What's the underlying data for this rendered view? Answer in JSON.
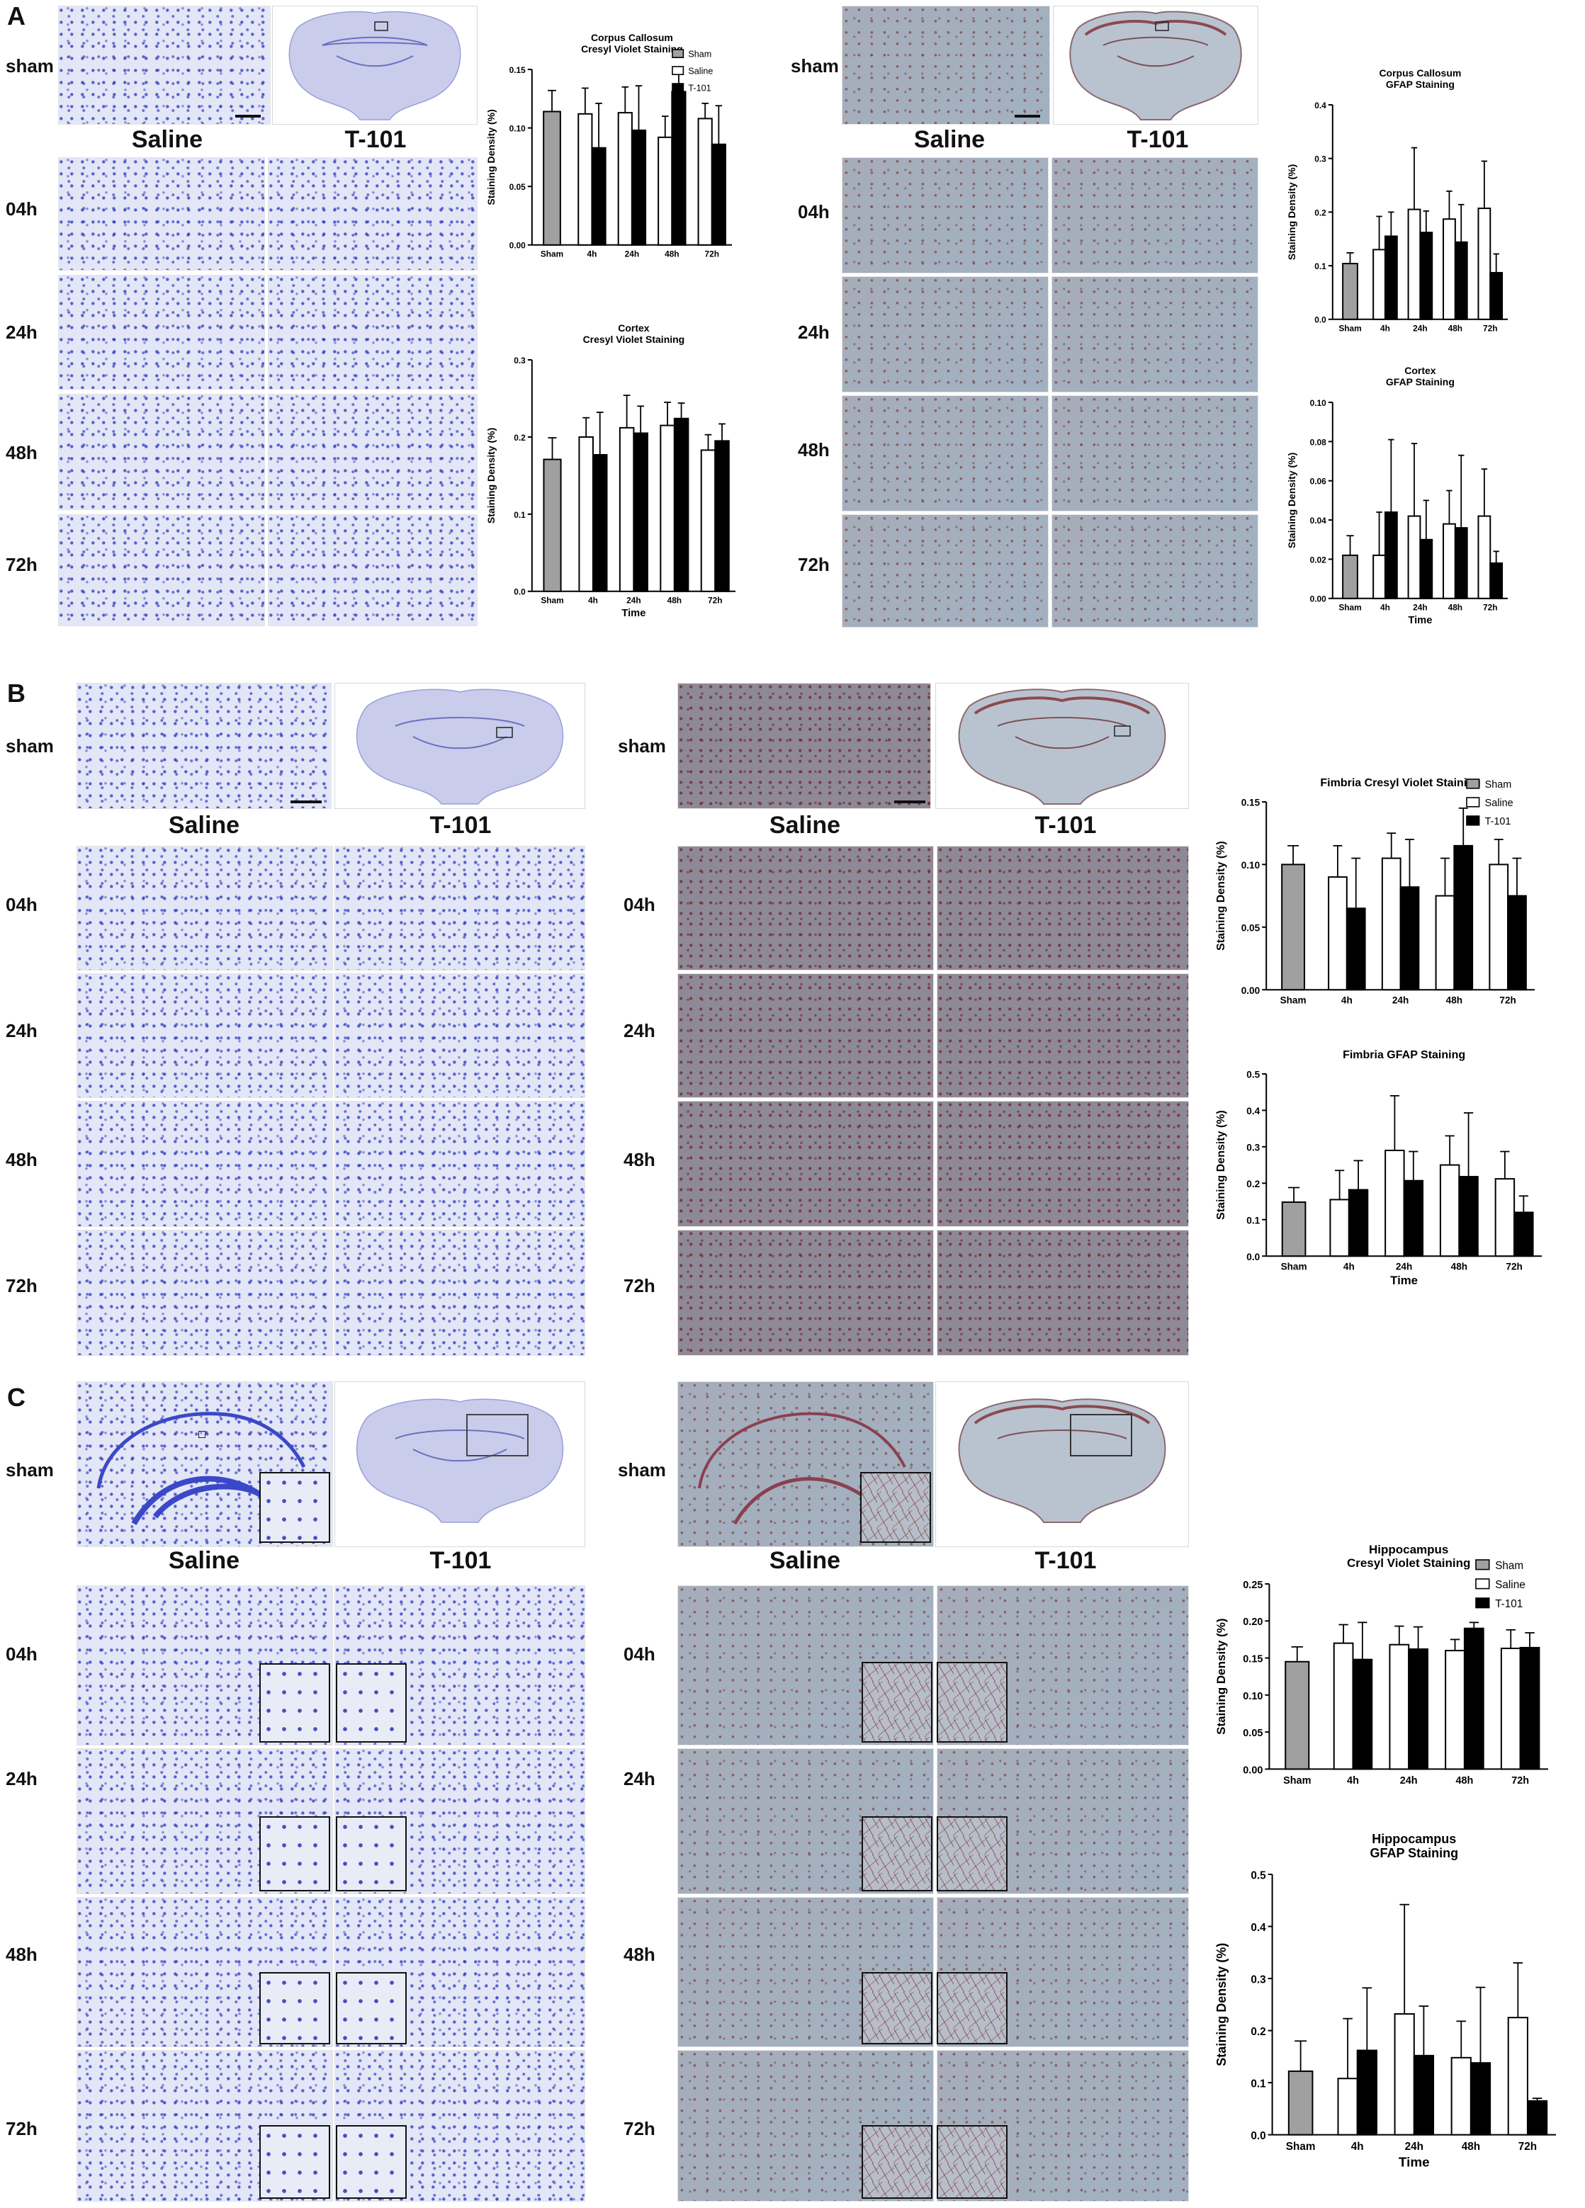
{
  "panels": {
    "A": {
      "letter": "A",
      "left": {
        "stain": "cresyl",
        "rows": [
          "sham",
          "04h",
          "24h",
          "48h",
          "72h"
        ],
        "columns": [
          "Saline",
          "T-101"
        ]
      },
      "right": {
        "stain": "gfap",
        "rows": [
          "sham",
          "04h",
          "24h",
          "48h",
          "72h"
        ],
        "columns": [
          "Saline",
          "T-101"
        ]
      }
    },
    "B": {
      "letter": "B",
      "left": {
        "stain": "cresyl",
        "rows": [
          "sham",
          "04h",
          "24h",
          "48h",
          "72h"
        ],
        "columns": [
          "Saline",
          "T-101"
        ]
      },
      "right": {
        "stain": "gfap",
        "rows": [
          "sham",
          "04h",
          "24h",
          "48h",
          "72h"
        ],
        "columns": [
          "Saline",
          "T-101"
        ]
      }
    },
    "C": {
      "letter": "C",
      "left": {
        "stain": "cresyl",
        "rows": [
          "sham",
          "04h",
          "24h",
          "48h",
          "72h"
        ],
        "columns": [
          "Saline",
          "T-101"
        ]
      },
      "right": {
        "stain": "gfap",
        "rows": [
          "sham",
          "04h",
          "24h",
          "48h",
          "72h"
        ],
        "columns": [
          "Saline",
          "T-101"
        ]
      }
    }
  },
  "colors": {
    "sham": "#a0a0a0",
    "saline": "#ffffff",
    "t101": "#000000",
    "cresyl": "#3a48c8",
    "gfap": "#8a2a2a"
  },
  "chart_data": [
    {
      "id": "cc-cv",
      "type": "bar",
      "title": [
        "Corpus Callosum",
        "Cresyl Violet Staining"
      ],
      "ylabel": "Staining Density (%)",
      "xlabel": "",
      "ylim": [
        0,
        0.15
      ],
      "yticks": [
        "0.00",
        "0.05",
        "0.10",
        "0.15"
      ],
      "categories": [
        "Sham",
        "4h",
        "24h",
        "48h",
        "72h"
      ],
      "series": [
        {
          "name": "Sham",
          "values": [
            0.114,
            null,
            null,
            null,
            null
          ],
          "errors": [
            0.018,
            null,
            null,
            null,
            null
          ]
        },
        {
          "name": "Saline",
          "values": [
            null,
            0.112,
            0.113,
            0.092,
            0.108
          ],
          "errors": [
            null,
            0.022,
            0.022,
            0.018,
            0.013
          ]
        },
        {
          "name": "T-101",
          "values": [
            null,
            0.083,
            0.098,
            0.131,
            0.086
          ],
          "errors": [
            null,
            0.038,
            0.038,
            0.03,
            0.033
          ]
        }
      ],
      "legend": "top-right"
    },
    {
      "id": "cx-cv",
      "type": "bar",
      "title": [
        "Cortex",
        "Cresyl Violet Staining"
      ],
      "ylabel": "Staining Density (%)",
      "xlabel": "Time",
      "ylim": [
        0,
        0.3
      ],
      "yticks": [
        "0.0",
        "0.1",
        "0.2",
        "0.3"
      ],
      "categories": [
        "Sham",
        "4h",
        "24h",
        "48h",
        "72h"
      ],
      "series": [
        {
          "name": "Sham",
          "values": [
            0.171,
            null,
            null,
            null,
            null
          ],
          "errors": [
            0.028,
            null,
            null,
            null,
            null
          ]
        },
        {
          "name": "Saline",
          "values": [
            null,
            0.2,
            0.212,
            0.215,
            0.183
          ],
          "errors": [
            null,
            0.025,
            0.042,
            0.03,
            0.02
          ]
        },
        {
          "name": "T-101",
          "values": [
            null,
            0.177,
            0.205,
            0.224,
            0.195
          ],
          "errors": [
            null,
            0.055,
            0.035,
            0.02,
            0.022
          ]
        }
      ],
      "legend": "none"
    },
    {
      "id": "cc-gfap",
      "type": "bar",
      "title": [
        "Corpus Callosum",
        "GFAP Staining"
      ],
      "ylabel": "Staining Density (%)",
      "xlabel": "",
      "ylim": [
        0,
        0.4
      ],
      "yticks": [
        "0.0",
        "0.1",
        "0.2",
        "0.3",
        "0.4"
      ],
      "categories": [
        "Sham",
        "4h",
        "24h",
        "48h",
        "72h"
      ],
      "series": [
        {
          "name": "Sham",
          "values": [
            0.104,
            null,
            null,
            null,
            null
          ],
          "errors": [
            0.02,
            null,
            null,
            null,
            null
          ]
        },
        {
          "name": "Saline",
          "values": [
            null,
            0.13,
            0.205,
            0.187,
            0.207
          ],
          "errors": [
            null,
            0.062,
            0.115,
            0.052,
            0.088
          ]
        },
        {
          "name": "T-101",
          "values": [
            null,
            0.155,
            0.162,
            0.144,
            0.087
          ],
          "errors": [
            null,
            0.045,
            0.04,
            0.07,
            0.035
          ]
        }
      ],
      "legend": "none"
    },
    {
      "id": "cx-gfap",
      "type": "bar",
      "title": [
        "Cortex",
        "GFAP Staining"
      ],
      "ylabel": "Staining Density (%)",
      "xlabel": "Time",
      "ylim": [
        0,
        0.1
      ],
      "yticks": [
        "0.00",
        "0.02",
        "0.04",
        "0.06",
        "0.08",
        "0.10"
      ],
      "categories": [
        "Sham",
        "4h",
        "24h",
        "48h",
        "72h"
      ],
      "series": [
        {
          "name": "Sham",
          "values": [
            0.022,
            null,
            null,
            null,
            null
          ],
          "errors": [
            0.01,
            null,
            null,
            null,
            null
          ]
        },
        {
          "name": "Saline",
          "values": [
            null,
            0.022,
            0.042,
            0.038,
            0.042
          ],
          "errors": [
            null,
            0.022,
            0.037,
            0.017,
            0.024
          ]
        },
        {
          "name": "T-101",
          "values": [
            null,
            0.044,
            0.03,
            0.036,
            0.018
          ],
          "errors": [
            null,
            0.037,
            0.02,
            0.037,
            0.006
          ]
        }
      ],
      "legend": "none"
    },
    {
      "id": "fim-cv",
      "type": "bar",
      "title": [
        "Fimbria Cresyl Violet Staining"
      ],
      "ylabel": "Staining Density (%)",
      "xlabel": "",
      "ylim": [
        0,
        0.15
      ],
      "yticks": [
        "0.00",
        "0.05",
        "0.10",
        "0.15"
      ],
      "categories": [
        "Sham",
        "4h",
        "24h",
        "48h",
        "72h"
      ],
      "series": [
        {
          "name": "Sham",
          "values": [
            0.1,
            null,
            null,
            null,
            null
          ],
          "errors": [
            0.015,
            null,
            null,
            null,
            null
          ]
        },
        {
          "name": "Saline",
          "values": [
            null,
            0.09,
            0.105,
            0.075,
            0.1
          ],
          "errors": [
            null,
            0.025,
            0.02,
            0.03,
            0.02
          ]
        },
        {
          "name": "T-101",
          "values": [
            null,
            0.065,
            0.082,
            0.115,
            0.075
          ],
          "errors": [
            null,
            0.04,
            0.038,
            0.03,
            0.03
          ]
        }
      ],
      "legend": "top-right"
    },
    {
      "id": "fim-gfap",
      "type": "bar",
      "title": [
        "Fimbria GFAP Staining"
      ],
      "ylabel": "Staining Density (%)",
      "xlabel": "Time",
      "ylim": [
        0,
        0.5
      ],
      "yticks": [
        "0.0",
        "0.1",
        "0.2",
        "0.3",
        "0.4",
        "0.5"
      ],
      "categories": [
        "Sham",
        "4h",
        "24h",
        "48h",
        "72h"
      ],
      "series": [
        {
          "name": "Sham",
          "values": [
            0.148,
            null,
            null,
            null,
            null
          ],
          "errors": [
            0.04,
            null,
            null,
            null,
            null
          ]
        },
        {
          "name": "Saline",
          "values": [
            null,
            0.155,
            0.29,
            0.25,
            0.212
          ],
          "errors": [
            null,
            0.08,
            0.15,
            0.08,
            0.075
          ]
        },
        {
          "name": "T-101",
          "values": [
            null,
            0.182,
            0.207,
            0.218,
            0.12
          ],
          "errors": [
            null,
            0.08,
            0.08,
            0.175,
            0.045
          ]
        }
      ],
      "legend": "none"
    },
    {
      "id": "hip-cv",
      "type": "bar",
      "title": [
        "Hippocampus",
        "Cresyl Violet Staining"
      ],
      "ylabel": "Staining Density (%)",
      "xlabel": "",
      "ylim": [
        0,
        0.25
      ],
      "yticks": [
        "0.00",
        "0.05",
        "0.10",
        "0.15",
        "0.20",
        "0.25"
      ],
      "categories": [
        "Sham",
        "4h",
        "24h",
        "48h",
        "72h"
      ],
      "series": [
        {
          "name": "Sham",
          "values": [
            0.145,
            null,
            null,
            null,
            null
          ],
          "errors": [
            0.02,
            null,
            null,
            null,
            null
          ]
        },
        {
          "name": "Saline",
          "values": [
            null,
            0.17,
            0.168,
            0.16,
            0.163
          ],
          "errors": [
            null,
            0.025,
            0.025,
            0.015,
            0.025
          ]
        },
        {
          "name": "T-101",
          "values": [
            null,
            0.148,
            0.162,
            0.19,
            0.164
          ],
          "errors": [
            null,
            0.05,
            0.03,
            0.008,
            0.02
          ]
        }
      ],
      "legend": "top-right"
    },
    {
      "id": "hip-gfap",
      "type": "bar",
      "title": [
        "Hippocampus",
        "GFAP Staining"
      ],
      "ylabel": "Staining Density (%)",
      "xlabel": "Time",
      "ylim": [
        0,
        0.5
      ],
      "yticks": [
        "0.0",
        "0.1",
        "0.2",
        "0.3",
        "0.4",
        "0.5"
      ],
      "categories": [
        "Sham",
        "4h",
        "24h",
        "48h",
        "72h"
      ],
      "series": [
        {
          "name": "Sham",
          "values": [
            0.122,
            null,
            null,
            null,
            null
          ],
          "errors": [
            0.058,
            null,
            null,
            null,
            null
          ]
        },
        {
          "name": "Saline",
          "values": [
            null,
            0.108,
            0.232,
            0.148,
            0.225
          ],
          "errors": [
            null,
            0.115,
            0.21,
            0.07,
            0.105
          ]
        },
        {
          "name": "T-101",
          "values": [
            null,
            0.162,
            0.152,
            0.138,
            0.065
          ],
          "errors": [
            null,
            0.12,
            0.095,
            0.145,
            0.005
          ]
        }
      ],
      "legend": "none"
    }
  ]
}
